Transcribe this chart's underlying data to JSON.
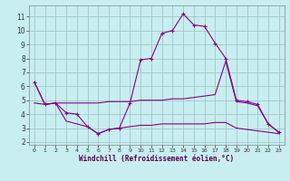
{
  "xlabel": "Windchill (Refroidissement éolien,°C)",
  "bg_color": "#c8eef0",
  "grid_color": "#a0c8c8",
  "line_color": "#880088",
  "xlim": [
    -0.5,
    23.5
  ],
  "ylim": [
    1.8,
    11.8
  ],
  "xticks": [
    0,
    1,
    2,
    3,
    4,
    5,
    6,
    7,
    8,
    9,
    10,
    11,
    12,
    13,
    14,
    15,
    16,
    17,
    18,
    19,
    20,
    21,
    22,
    23
  ],
  "yticks": [
    2,
    3,
    4,
    5,
    6,
    7,
    8,
    9,
    10,
    11
  ],
  "s1_x": [
    0,
    1,
    2,
    3,
    4,
    5,
    6,
    7,
    8,
    9,
    10,
    11,
    12,
    13,
    14,
    15,
    16,
    17,
    18,
    19,
    20,
    21,
    22,
    23
  ],
  "s1_y": [
    6.3,
    4.7,
    4.8,
    4.1,
    4.0,
    3.1,
    2.6,
    2.9,
    3.0,
    4.8,
    7.9,
    8.0,
    9.8,
    10.0,
    11.2,
    10.4,
    10.3,
    9.1,
    8.0,
    5.0,
    4.9,
    4.7,
    3.3,
    2.7
  ],
  "s2_x": [
    0,
    1,
    2,
    3,
    4,
    5,
    6,
    7,
    8,
    9,
    10,
    11,
    12,
    13,
    14,
    15,
    16,
    17,
    18,
    19,
    20,
    21,
    22,
    23
  ],
  "s2_y": [
    4.8,
    4.7,
    4.8,
    4.8,
    4.8,
    4.8,
    4.8,
    4.9,
    4.9,
    4.9,
    5.0,
    5.0,
    5.0,
    5.1,
    5.1,
    5.2,
    5.3,
    5.4,
    7.8,
    4.9,
    4.8,
    4.6,
    3.3,
    2.7
  ],
  "s3_x": [
    0,
    1,
    2,
    3,
    4,
    5,
    6,
    7,
    8,
    9,
    10,
    11,
    12,
    13,
    14,
    15,
    16,
    17,
    18,
    19,
    20,
    21,
    22,
    23
  ],
  "s3_y": [
    6.3,
    4.7,
    4.8,
    3.5,
    3.3,
    3.1,
    2.6,
    2.9,
    3.0,
    3.1,
    3.2,
    3.2,
    3.3,
    3.3,
    3.3,
    3.3,
    3.3,
    3.4,
    3.4,
    3.0,
    2.9,
    2.8,
    2.7,
    2.6
  ]
}
